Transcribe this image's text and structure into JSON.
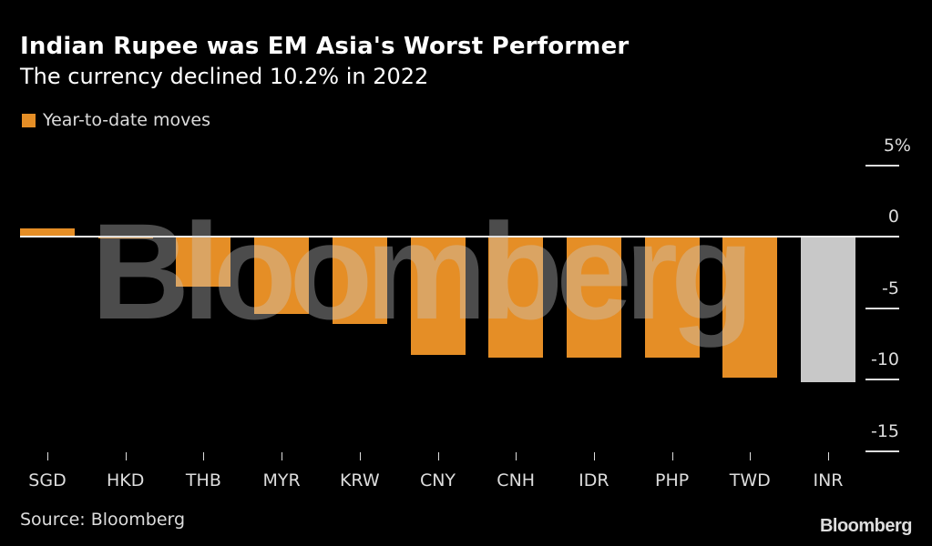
{
  "header": {
    "title": "Indian Rupee was EM Asia's Worst Performer",
    "subtitle": "The currency declined 10.2% in 2022"
  },
  "legend": {
    "label": "Year-to-date moves",
    "color": "#e58e26"
  },
  "watermark": "Bloomberg",
  "footer": {
    "source": "Source: Bloomberg",
    "brand": "Bloomberg"
  },
  "colors": {
    "bar": "#e58e26",
    "highlight": "#c8c8c8",
    "background": "#000000"
  },
  "chart_data": {
    "type": "bar",
    "title": "Indian Rupee was EM Asia's Worst Performer",
    "subtitle": "The currency declined 10.2% in 2022",
    "categories": [
      "SGD",
      "HKD",
      "THB",
      "MYR",
      "KRW",
      "CNY",
      "CNH",
      "IDR",
      "PHP",
      "TWD",
      "INR"
    ],
    "series": [
      {
        "name": "Year-to-date moves",
        "values": [
          0.6,
          -0.1,
          -3.5,
          -5.4,
          -6.1,
          -8.3,
          -8.5,
          -8.5,
          -8.5,
          -9.9,
          -10.2
        ]
      }
    ],
    "highlight": "INR",
    "xlabel": "",
    "ylabel": "",
    "ylim": [
      -15,
      5
    ],
    "yticks": [
      "5%",
      "0",
      "-5",
      "-10",
      "-15"
    ],
    "y_axis_position": "right",
    "grid": false,
    "legend_position": "top-left",
    "source": "Source: Bloomberg"
  }
}
